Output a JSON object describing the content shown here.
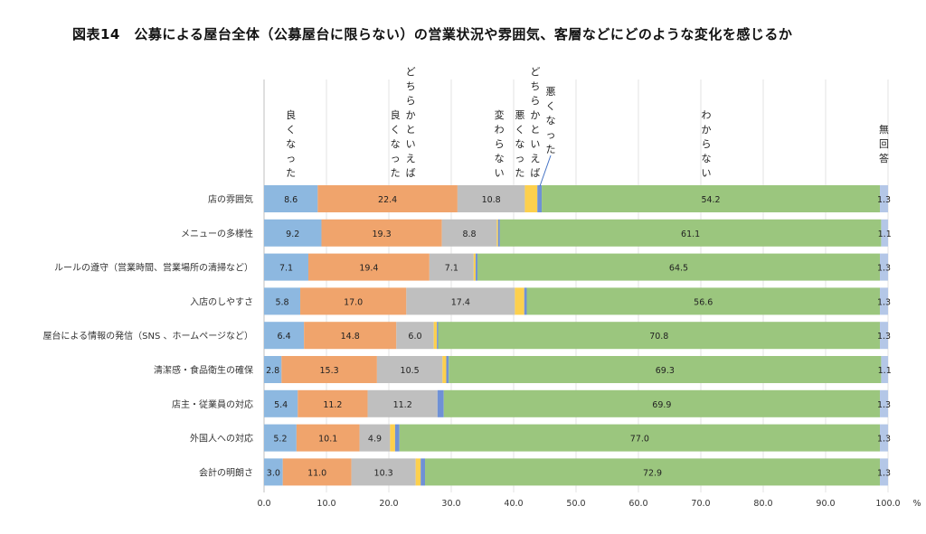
{
  "title": "図表14　公募による屋台全体（公募屋台に限らない）の営業状況や雰囲気、客層などにどのような変化を感じるか",
  "chart_data": {
    "type": "bar",
    "orientation": "horizontal",
    "stacked": true,
    "title": "図表14　公募による屋台全体（公募屋台に限らない）の営業状況や雰囲気、客層などにどのような変化を感じるか",
    "xlabel": "%",
    "ylabel": "",
    "xlim": [
      0,
      100
    ],
    "grid": true,
    "legend_placement": "top (vertical labels above series)",
    "x_ticks": [
      "0.0",
      "10.0",
      "20.0",
      "30.0",
      "40.0",
      "50.0",
      "60.0",
      "70.0",
      "80.0",
      "90.0",
      "100.0"
    ],
    "unit_label": "%",
    "categories": [
      "店の雰囲気",
      "メニューの多様性",
      "ルールの遵守（営業時間、営業場所の清掃など）",
      "入店のしやすさ",
      "屋台による情報の発信（SNS 、ホームページなど）",
      "清潔感・食品衛生の確保",
      "店主・従業員の対応",
      "外国人への対応",
      "会計の明朗さ"
    ],
    "series": [
      {
        "name": "良くなった",
        "color": "#8db8e0",
        "labeled": true,
        "values": [
          8.6,
          9.2,
          7.1,
          5.8,
          6.4,
          2.8,
          5.4,
          5.2,
          3.0
        ]
      },
      {
        "name": "どちらかといえば良くなった",
        "color": "#f0a46c",
        "labeled": true,
        "values": [
          22.4,
          19.3,
          19.4,
          17.0,
          14.8,
          15.3,
          11.2,
          10.1,
          11.0
        ]
      },
      {
        "name": "変わらない",
        "color": "#bfbfbf",
        "labeled": true,
        "values": [
          10.8,
          8.8,
          7.1,
          17.4,
          6.0,
          10.5,
          11.2,
          4.9,
          10.3
        ]
      },
      {
        "name": "どちらかといえば悪くなった",
        "color": "#fdd04d",
        "labeled": false,
        "values": [
          2.0,
          0.2,
          0.3,
          1.5,
          0.5,
          0.6,
          0.0,
          0.8,
          0.8
        ]
      },
      {
        "name": "悪くなった",
        "color": "#6f91d6",
        "labeled": false,
        "values": [
          0.7,
          0.3,
          0.3,
          0.4,
          0.2,
          0.4,
          1.0,
          0.7,
          0.7
        ]
      },
      {
        "name": "わからない",
        "color": "#9bc67e",
        "labeled": true,
        "values": [
          54.2,
          61.1,
          64.5,
          56.6,
          70.8,
          69.3,
          69.9,
          77.0,
          72.9
        ]
      },
      {
        "name": "無回答",
        "color": "#b4c7e7",
        "labeled": true,
        "values": [
          1.3,
          1.1,
          1.3,
          1.3,
          1.3,
          1.1,
          1.3,
          1.3,
          1.3
        ]
      }
    ],
    "legend_labels": [
      {
        "series": "良くなった",
        "lines": [
          "良くなった"
        ]
      },
      {
        "series": "どちらかといえば良くなった",
        "lines": [
          "どちらかといえば",
          "良くなった"
        ]
      },
      {
        "series": "変わらない",
        "lines": [
          "変わらない"
        ]
      },
      {
        "series": "どちらかといえば悪くなった",
        "lines": [
          "どちらかといえば",
          "悪くなった"
        ]
      },
      {
        "series": "悪くなった",
        "lines": [
          "悪くなった"
        ]
      },
      {
        "series": "わからない",
        "lines": [
          "わからない"
        ]
      },
      {
        "series": "無回答",
        "lines": [
          "無回答"
        ]
      }
    ]
  }
}
